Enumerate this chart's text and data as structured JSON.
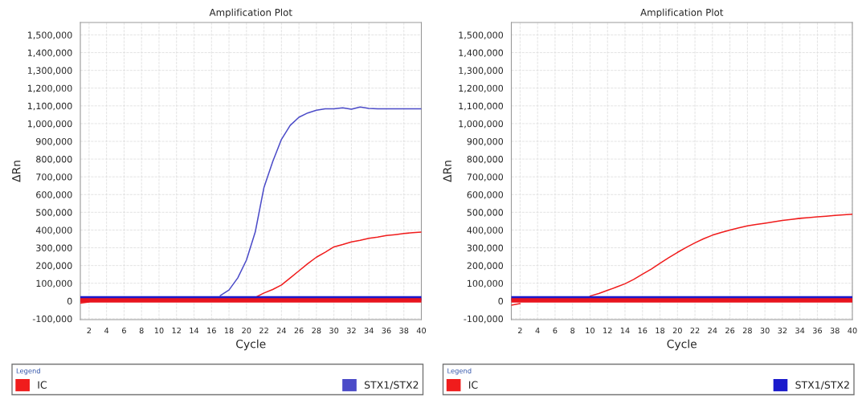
{
  "chart_data": [
    {
      "type": "line",
      "title": "Amplification Plot",
      "xlabel": "Cycle",
      "ylabel": "ΔRn",
      "legend_title": "Legend",
      "legend": "bottom",
      "grid": true,
      "x": [
        1,
        2,
        3,
        4,
        5,
        6,
        7,
        8,
        9,
        10,
        11,
        12,
        13,
        14,
        15,
        16,
        17,
        18,
        19,
        20,
        21,
        22,
        23,
        24,
        25,
        26,
        27,
        28,
        29,
        30,
        31,
        32,
        33,
        34,
        35,
        36,
        37,
        38,
        39,
        40
      ],
      "xlim": [
        1,
        40
      ],
      "xticks": [
        2,
        4,
        6,
        8,
        10,
        12,
        14,
        16,
        18,
        20,
        22,
        24,
        26,
        28,
        30,
        32,
        34,
        36,
        38,
        40
      ],
      "ylim": [
        -105000,
        1570000
      ],
      "yticks": [
        {
          "value": -100000,
          "label": "-100,000"
        },
        0,
        {
          "value": 100000,
          "label": "100,000"
        },
        {
          "value": 200000,
          "label": "200,000"
        },
        {
          "value": 300000,
          "label": "300,000"
        },
        {
          "value": 400000,
          "label": "400,000"
        },
        {
          "value": 500000,
          "label": "500,000"
        },
        {
          "value": 600000,
          "label": "600,000"
        },
        {
          "value": 700000,
          "label": "700,000"
        },
        {
          "value": 800000,
          "label": "800,000"
        },
        {
          "value": 900000,
          "label": "900,000"
        },
        {
          "value": 1000000,
          "label": "1,000,000"
        },
        {
          "value": 1100000,
          "label": "1,100,000"
        },
        {
          "value": 1200000,
          "label": "1,200,000"
        },
        {
          "value": 1300000,
          "label": "1,300,000"
        },
        {
          "value": 1400000,
          "label": "1,400,000"
        },
        {
          "value": 1500000,
          "label": "1,500,000"
        }
      ],
      "ref_lines": [
        {
          "axis": "y",
          "value": 15000,
          "color": "#1a1acc"
        },
        {
          "axis": "y",
          "value": 4000,
          "color": "#e8141e"
        }
      ],
      "series": [
        {
          "name": "IC",
          "color": "#f01c1c",
          "values": [
            -12000,
            -5000,
            null,
            null,
            null,
            null,
            null,
            null,
            null,
            null,
            null,
            null,
            null,
            null,
            null,
            null,
            null,
            null,
            null,
            null,
            20000,
            45000,
            65000,
            90000,
            130000,
            170000,
            210000,
            247000,
            275000,
            305000,
            318000,
            333000,
            342000,
            353000,
            360000,
            369000,
            374000,
            380000,
            385000,
            388000
          ]
        },
        {
          "name": "STX1/STX2",
          "color": "#4b4bc8",
          "values": [
            null,
            null,
            null,
            null,
            null,
            null,
            null,
            null,
            null,
            null,
            null,
            null,
            null,
            null,
            null,
            null,
            30000,
            62000,
            130000,
            231000,
            388000,
            640000,
            786000,
            911000,
            990000,
            1036000,
            1060000,
            1075000,
            1083000,
            1083000,
            1089000,
            1081000,
            1094000,
            1086000,
            1083000,
            1083000,
            1083000,
            1083000,
            1083000,
            1083000
          ]
        }
      ]
    },
    {
      "type": "line",
      "title": "Amplification Plot",
      "xlabel": "Cycle",
      "ylabel": "ΔRn",
      "legend_title": "Legend",
      "legend": "bottom",
      "grid": true,
      "x": [
        1,
        2,
        3,
        4,
        5,
        6,
        7,
        8,
        9,
        10,
        11,
        12,
        13,
        14,
        15,
        16,
        17,
        18,
        19,
        20,
        21,
        22,
        23,
        24,
        25,
        26,
        27,
        28,
        29,
        30,
        31,
        32,
        33,
        34,
        35,
        36,
        37,
        38,
        39,
        40
      ],
      "xlim": [
        1,
        40
      ],
      "xticks": [
        2,
        4,
        6,
        8,
        10,
        12,
        14,
        16,
        18,
        20,
        22,
        24,
        26,
        28,
        30,
        32,
        34,
        36,
        38,
        40
      ],
      "ylim": [
        -105000,
        1570000
      ],
      "yticks": [
        {
          "value": -100000,
          "label": "-100,000"
        },
        0,
        {
          "value": 100000,
          "label": "100,000"
        },
        {
          "value": 200000,
          "label": "200,000"
        },
        {
          "value": 300000,
          "label": "300,000"
        },
        {
          "value": 400000,
          "label": "400,000"
        },
        {
          "value": 500000,
          "label": "500,000"
        },
        {
          "value": 600000,
          "label": "600,000"
        },
        {
          "value": 700000,
          "label": "700,000"
        },
        {
          "value": 800000,
          "label": "800,000"
        },
        {
          "value": 900000,
          "label": "900,000"
        },
        {
          "value": 1000000,
          "label": "1,000,000"
        },
        {
          "value": 1100000,
          "label": "1,100,000"
        },
        {
          "value": 1200000,
          "label": "1,200,000"
        },
        {
          "value": 1300000,
          "label": "1,300,000"
        },
        {
          "value": 1400000,
          "label": "1,400,000"
        },
        {
          "value": 1500000,
          "label": "1,500,000"
        }
      ],
      "ref_lines": [
        {
          "axis": "y",
          "value": 15000,
          "color": "#1a1acc"
        },
        {
          "axis": "y",
          "value": 4000,
          "color": "#e8141e"
        }
      ],
      "series": [
        {
          "name": "IC",
          "color": "#f01c1c",
          "values": [
            -23000,
            -15000,
            null,
            null,
            null,
            null,
            null,
            null,
            null,
            28000,
            42000,
            60000,
            78000,
            97000,
            122000,
            151000,
            180000,
            212000,
            244000,
            274000,
            302000,
            328000,
            351000,
            371000,
            386000,
            400000,
            412000,
            423000,
            431000,
            438000,
            446000,
            454000,
            460000,
            466000,
            470000,
            474000,
            478000,
            482000,
            486000,
            489000
          ]
        },
        {
          "name": "STX1/STX2",
          "color": "#1a1acc",
          "values": [
            null,
            null,
            null,
            null,
            null,
            null,
            null,
            null,
            null,
            null,
            null,
            null,
            null,
            null,
            null,
            null,
            null,
            null,
            null,
            null,
            null,
            null,
            null,
            null,
            null,
            null,
            null,
            null,
            null,
            null,
            null,
            null,
            null,
            null,
            null,
            null,
            null,
            null,
            null,
            null
          ]
        }
      ]
    }
  ]
}
